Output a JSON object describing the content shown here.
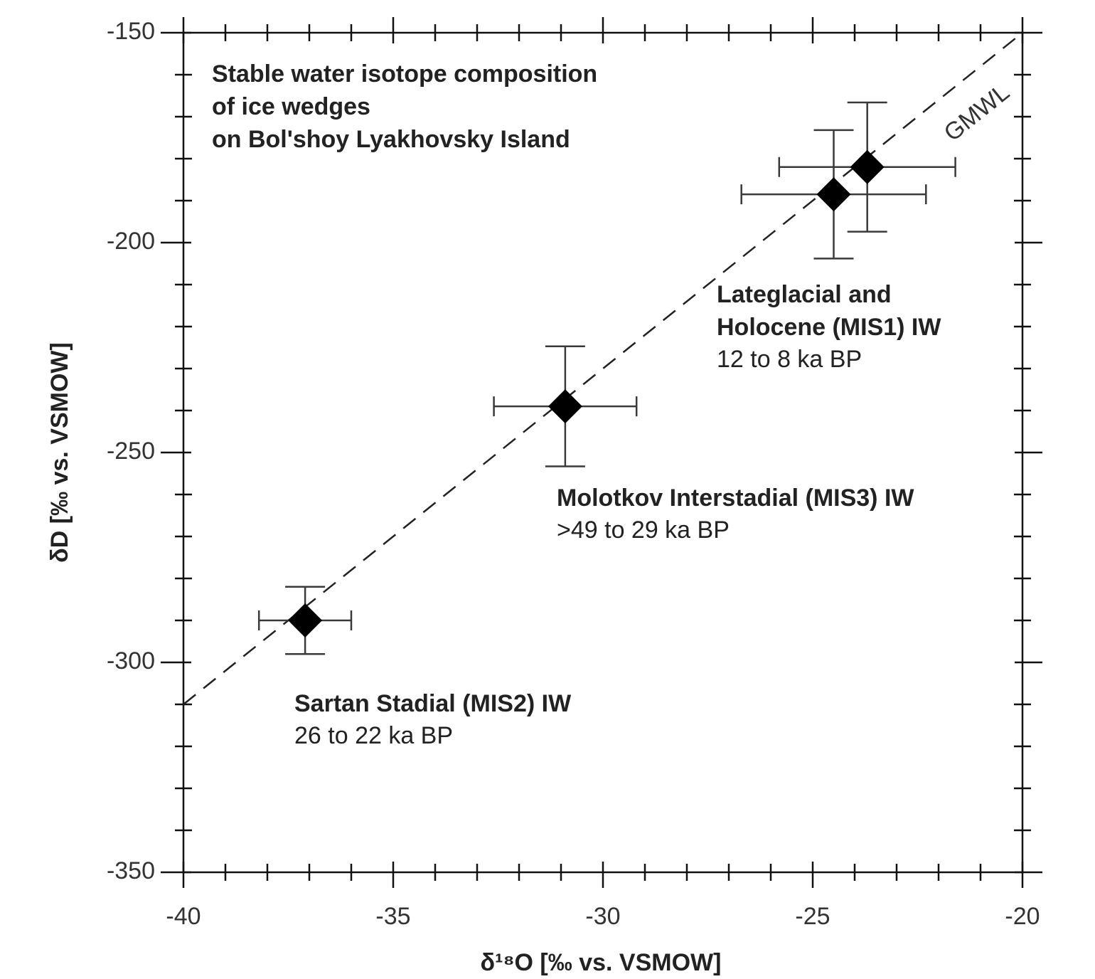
{
  "chart_data": {
    "type": "scatter",
    "title_lines": [
      "Stable water isotope composition",
      "of ice wedges",
      "on Bol'shoy Lyakhovsky Island"
    ],
    "x_label": "δ¹⁸O [‰ vs. VSMOW]",
    "y_label": "δD [‰ vs. VSMOW]",
    "x": [
      -37.1,
      -30.9,
      -24.5,
      -23.7
    ],
    "values": [
      -290,
      -239,
      -188.5,
      -182
    ],
    "xerr": [
      1.1,
      1.7,
      2.2,
      2.1
    ],
    "yerr": [
      8,
      14.3,
      15.3,
      15.4
    ],
    "color": "#000000",
    "reference_line": {
      "label": "GMWL",
      "x": [
        -40,
        -20
      ],
      "y": [
        -310,
        -150
      ]
    },
    "annotations": [
      {
        "lines": [
          "Lateglacial and",
          "Holocene (MIS1) IW"
        ],
        "sub": "12 to 8 ka BP"
      },
      {
        "lines": [
          "Molotkov Interstadial (MIS3) IW"
        ],
        "sub": ">49 to 29 ka BP"
      },
      {
        "lines": [
          "Sartan Stadial (MIS2) IW"
        ],
        "sub": "26 to 22 ka BP"
      }
    ],
    "xlim": [
      -40,
      -20
    ],
    "ylim": [
      -350,
      -150
    ],
    "xticks": [
      -40,
      -35,
      -30,
      -25,
      -20
    ],
    "yticks": [
      -150,
      -200,
      -250,
      -300,
      -350
    ],
    "xticks_minor": [
      -39,
      -38,
      -37,
      -36,
      -34,
      -33,
      -32,
      -31,
      -29,
      -28,
      -27,
      -26,
      -24,
      -23,
      -22,
      -21
    ],
    "yticks_minor": [
      -160,
      -170,
      -180,
      -190,
      -210,
      -220,
      -230,
      -240,
      -260,
      -270,
      -280,
      -290,
      -310,
      -320,
      -330,
      -340
    ]
  }
}
